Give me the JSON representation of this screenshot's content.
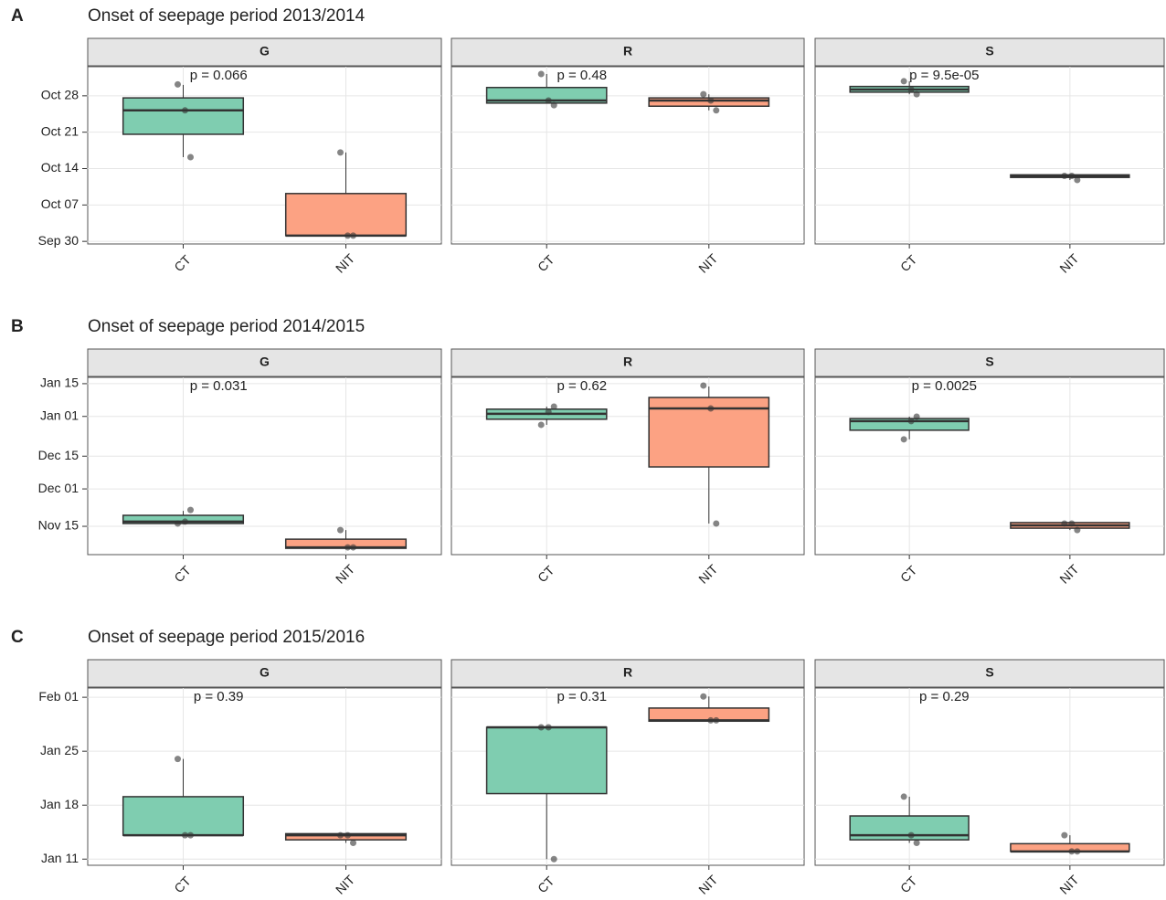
{
  "chart_data": [
    {
      "type": "box",
      "tag": "A",
      "title": "Onset of seepage period 2013/2014",
      "categories": [
        "CT",
        "NIT"
      ],
      "colors": [
        "#7fcdb0",
        "#fca283"
      ],
      "ylim": [
        272.5,
        306.6
      ],
      "yticks": [
        {
          "value": 273,
          "label": "Sep 30"
        },
        {
          "value": 280,
          "label": "Oct 07"
        },
        {
          "value": 287,
          "label": "Oct 14"
        },
        {
          "value": 294,
          "label": "Oct 21"
        },
        {
          "value": 301,
          "label": "Oct 28"
        }
      ],
      "facets": [
        {
          "name": "G",
          "p_label": "p = 0.066",
          "boxes": [
            {
              "min": 289.2,
              "q1": 293.6,
              "median": 298.2,
              "q3": 300.6,
              "max": 303.1,
              "points": [
                303.2,
                298.2,
                289.2
              ]
            },
            {
              "min": 274.1,
              "q1": 274.1,
              "median": 274.1,
              "q3": 282.2,
              "max": 290.1,
              "points": [
                290.1,
                274.1,
                274.1
              ]
            }
          ]
        },
        {
          "name": "R",
          "p_label": "p = 0.48",
          "boxes": [
            {
              "min": 299.6,
              "q1": 299.6,
              "median": 300.1,
              "q3": 302.6,
              "max": 305.2,
              "points": [
                305.2,
                300.1,
                299.2
              ]
            },
            {
              "min": 298.2,
              "q1": 299.0,
              "median": 300.1,
              "q3": 300.6,
              "max": 301.3,
              "points": [
                301.3,
                300.1,
                298.2
              ]
            }
          ]
        },
        {
          "name": "S",
          "p_label": "p = 9.5e-05",
          "boxes": [
            {
              "min": 301.3,
              "q1": 301.7,
              "median": 302.2,
              "q3": 302.8,
              "max": 303.8,
              "points": [
                303.8,
                302.2,
                301.3
              ]
            },
            {
              "min": 284.8,
              "q1": 285.3,
              "median": 285.6,
              "q3": 285.8,
              "max": 285.8,
              "points": [
                285.6,
                285.6,
                284.8
              ]
            }
          ]
        }
      ]
    },
    {
      "type": "box",
      "tag": "B",
      "title": "Onset of seepage period 2014/2015",
      "categories": [
        "CT",
        "NIT"
      ],
      "colors": [
        "#7fcdb0",
        "#fca283"
      ],
      "ylim": [
        306.9,
        382.7
      ],
      "yticks": [
        {
          "value": 319,
          "label": "Nov 15"
        },
        {
          "value": 335,
          "label": "Dec 01"
        },
        {
          "value": 349,
          "label": "Dec 15"
        },
        {
          "value": 366,
          "label": "Jan 01"
        },
        {
          "value": 380,
          "label": "Jan 15"
        }
      ],
      "facets": [
        {
          "name": "G",
          "p_label": "p = 0.031",
          "boxes": [
            {
              "min": 320.2,
              "q1": 320.2,
              "median": 321.0,
              "q3": 323.7,
              "max": 325.6,
              "points": [
                320.2,
                321.0,
                326.0
              ]
            },
            {
              "min": 309.6,
              "q1": 309.6,
              "median": 310.0,
              "q3": 313.5,
              "max": 317.4,
              "points": [
                317.4,
                310.0,
                310.0
              ]
            }
          ]
        },
        {
          "name": "R",
          "p_label": "p = 0.62",
          "boxes": [
            {
              "min": 362.4,
              "q1": 364.8,
              "median": 367.1,
              "q3": 369.1,
              "max": 370.2,
              "points": [
                362.4,
                367.9,
                370.2
              ]
            },
            {
              "min": 320.2,
              "q1": 344.4,
              "median": 369.4,
              "q3": 374.1,
              "max": 378.8,
              "points": [
                379.2,
                369.4,
                320.2
              ]
            }
          ]
        },
        {
          "name": "S",
          "p_label": "p = 0.0025",
          "boxes": [
            {
              "min": 356.2,
              "q1": 360.1,
              "median": 364.0,
              "q3": 365.1,
              "max": 365.9,
              "points": [
                356.2,
                364.0,
                365.9
              ]
            },
            {
              "min": 317.4,
              "q1": 318.2,
              "median": 319.4,
              "q3": 320.6,
              "max": 320.6,
              "points": [
                320.2,
                320.2,
                317.4
              ]
            }
          ]
        }
      ]
    },
    {
      "type": "box",
      "tag": "C",
      "title": "Onset of seepage period 2015/2016",
      "categories": [
        "CT",
        "NIT"
      ],
      "colors": [
        "#7fcdb0",
        "#fca283"
      ],
      "ylim": [
        10.2,
        33.2
      ],
      "yticks": [
        {
          "value": 11,
          "label": "Jan 11"
        },
        {
          "value": 18,
          "label": "Jan 18"
        },
        {
          "value": 25,
          "label": "Jan 25"
        },
        {
          "value": 32,
          "label": "Feb 01"
        }
      ],
      "facets": [
        {
          "name": "G",
          "p_label": "p = 0.39",
          "boxes": [
            {
              "min": 14.1,
              "q1": 14.1,
              "median": 14.1,
              "q3": 19.1,
              "max": 24.0,
              "points": [
                24.0,
                14.1,
                14.1
              ]
            },
            {
              "min": 13.1,
              "q1": 13.5,
              "median": 14.1,
              "q3": 14.3,
              "max": 14.3,
              "points": [
                14.1,
                14.1,
                13.1
              ]
            }
          ]
        },
        {
          "name": "R",
          "p_label": "p = 0.31",
          "boxes": [
            {
              "min": 11.0,
              "q1": 19.5,
              "median": 28.1,
              "q3": 28.1,
              "max": 28.1,
              "points": [
                28.1,
                28.1,
                11.0
              ]
            },
            {
              "min": 28.9,
              "q1": 28.9,
              "median": 29.0,
              "q3": 30.6,
              "max": 32.1,
              "points": [
                32.1,
                29.0,
                29.0
              ]
            }
          ]
        },
        {
          "name": "S",
          "p_label": "p = 0.29",
          "boxes": [
            {
              "min": 13.1,
              "q1": 13.5,
              "median": 14.1,
              "q3": 16.6,
              "max": 19.1,
              "points": [
                19.1,
                14.1,
                13.1
              ]
            },
            {
              "min": 12.0,
              "q1": 12.0,
              "median": 12.0,
              "q3": 13.0,
              "max": 14.1,
              "points": [
                14.1,
                12.0,
                12.0
              ]
            }
          ]
        }
      ]
    }
  ]
}
